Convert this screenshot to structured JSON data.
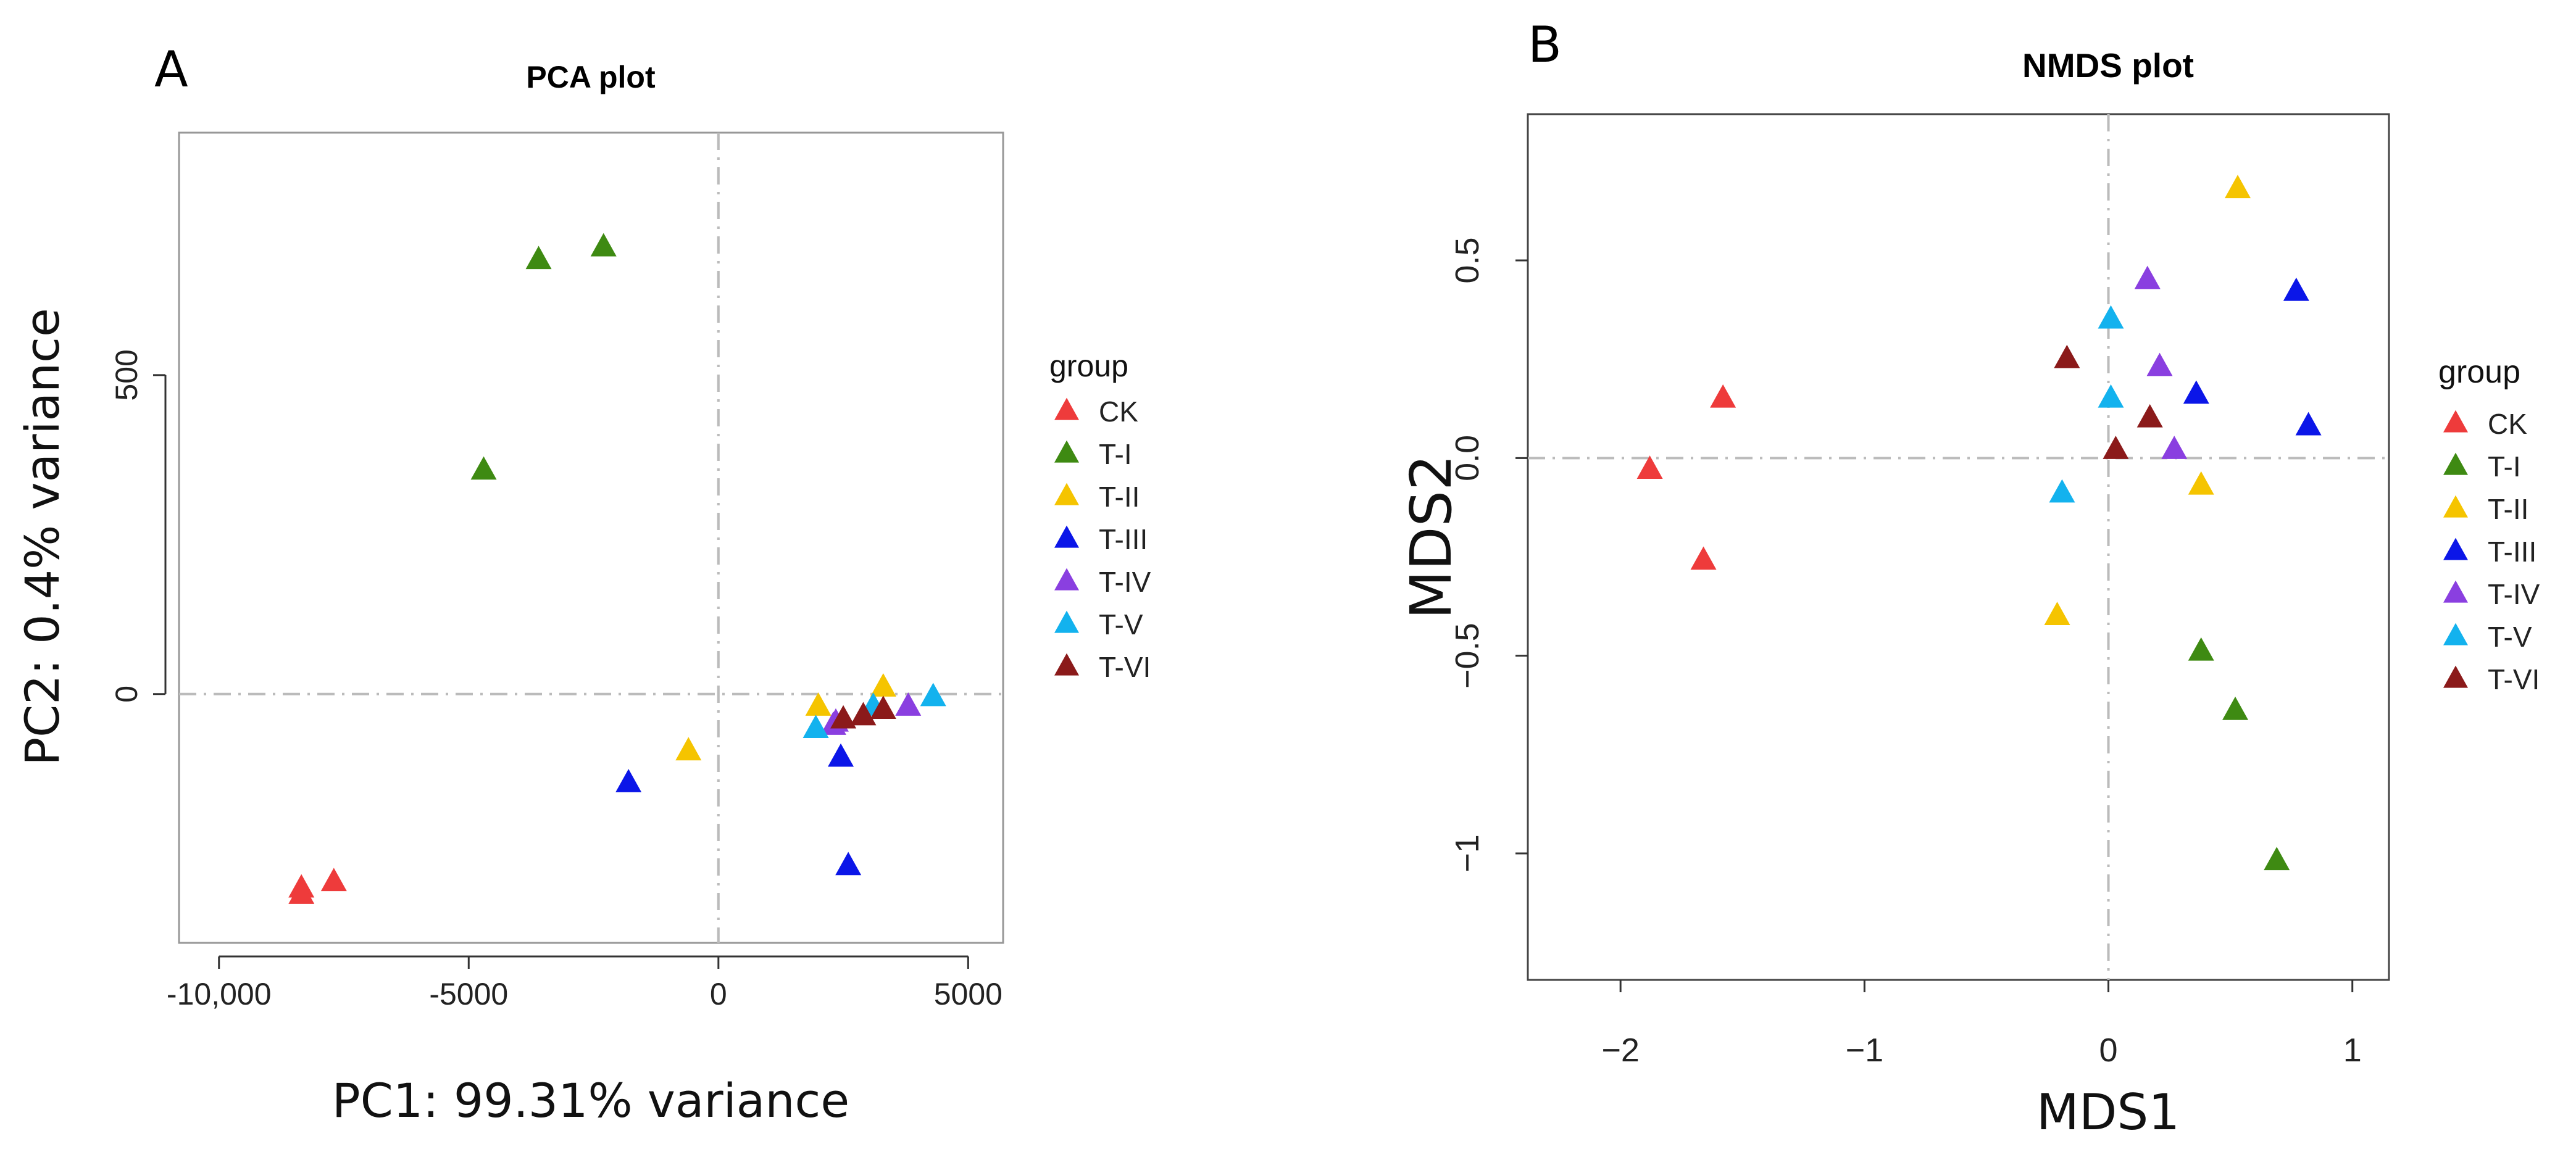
{
  "chart_data": [
    {
      "type": "scatter",
      "panel": "A",
      "title": "PCA plot",
      "xlabel": "PC1: 99.31% variance",
      "ylabel": "PC2: 0.4% variance",
      "xlim": [
        -10800,
        5700
      ],
      "ylim": [
        -390,
        880
      ],
      "xticks": [
        -10000,
        -5000,
        0,
        5000
      ],
      "xtick_labels": [
        "-10,000",
        "-5000",
        "0",
        "5000"
      ],
      "yticks": [
        0,
        500
      ],
      "ytick_labels": [
        "0",
        "500"
      ],
      "ref_x": 0,
      "ref_y": 0,
      "legend_title": "group",
      "series": [
        {
          "name": "CK",
          "color": "#ee3b3b",
          "points": [
            [
              -8350,
              -305
            ],
            [
              -7700,
              -295
            ],
            [
              -8350,
              -315
            ]
          ]
        },
        {
          "name": "T-I",
          "color": "#3e8a12",
          "points": [
            [
              -3600,
              680
            ],
            [
              -2300,
              700
            ],
            [
              -4700,
              350
            ]
          ]
        },
        {
          "name": "T-II",
          "color": "#f5c400",
          "points": [
            [
              -600,
              -90
            ],
            [
              2000,
              -20
            ],
            [
              3300,
              10
            ]
          ]
        },
        {
          "name": "T-III",
          "color": "#0b16e8",
          "points": [
            [
              -1800,
              -140
            ],
            [
              2450,
              -100
            ],
            [
              2600,
              -270
            ]
          ]
        },
        {
          "name": "T-IV",
          "color": "#8a3fe0",
          "points": [
            [
              2300,
              -50
            ],
            [
              2350,
              -45
            ],
            [
              3800,
              -20
            ]
          ]
        },
        {
          "name": "T-V",
          "color": "#13b2ee",
          "points": [
            [
              1950,
              -55
            ],
            [
              4300,
              -5
            ],
            [
              3100,
              -20
            ]
          ]
        },
        {
          "name": "T-VI",
          "color": "#8b1a1a",
          "points": [
            [
              2900,
              -35
            ],
            [
              3300,
              -25
            ],
            [
              2500,
              -40
            ]
          ]
        }
      ]
    },
    {
      "type": "scatter",
      "panel": "B",
      "title": "NMDS plot",
      "xlabel": "MDS1",
      "ylabel": "MDS2",
      "xlim": [
        -2.38,
        1.15
      ],
      "ylim": [
        -1.32,
        0.87
      ],
      "xticks": [
        -2,
        -1,
        0,
        1
      ],
      "xtick_labels": [
        "−2",
        "−1",
        "0",
        "1"
      ],
      "yticks": [
        -1,
        -0.5,
        0.0,
        0.5
      ],
      "ytick_labels": [
        "−1",
        "−0.5",
        "0.0",
        "0.5"
      ],
      "ref_x": 0,
      "ref_y": 0,
      "legend_title": "group",
      "series": [
        {
          "name": "CK",
          "color": "#ee3b3b",
          "points": [
            [
              -1.58,
              0.15
            ],
            [
              -1.88,
              -0.03
            ],
            [
              -1.66,
              -0.26
            ]
          ]
        },
        {
          "name": "T-I",
          "color": "#3e8a12",
          "points": [
            [
              0.38,
              -0.49
            ],
            [
              0.52,
              -0.64
            ],
            [
              0.69,
              -1.02
            ]
          ]
        },
        {
          "name": "T-II",
          "color": "#f5c400",
          "points": [
            [
              0.53,
              0.68
            ],
            [
              0.38,
              -0.07
            ],
            [
              -0.21,
              -0.4
            ]
          ]
        },
        {
          "name": "T-III",
          "color": "#0b16e8",
          "points": [
            [
              0.77,
              0.42
            ],
            [
              0.82,
              0.08
            ],
            [
              0.36,
              0.16
            ]
          ]
        },
        {
          "name": "T-IV",
          "color": "#8a3fe0",
          "points": [
            [
              0.16,
              0.45
            ],
            [
              0.21,
              0.23
            ],
            [
              0.27,
              0.02
            ]
          ]
        },
        {
          "name": "T-V",
          "color": "#13b2ee",
          "points": [
            [
              0.01,
              0.35
            ],
            [
              0.01,
              0.15
            ],
            [
              -0.19,
              -0.09
            ]
          ]
        },
        {
          "name": "T-VI",
          "color": "#8b1a1a",
          "points": [
            [
              -0.17,
              0.25
            ],
            [
              0.17,
              0.1
            ],
            [
              0.03,
              0.02
            ]
          ]
        }
      ]
    }
  ]
}
